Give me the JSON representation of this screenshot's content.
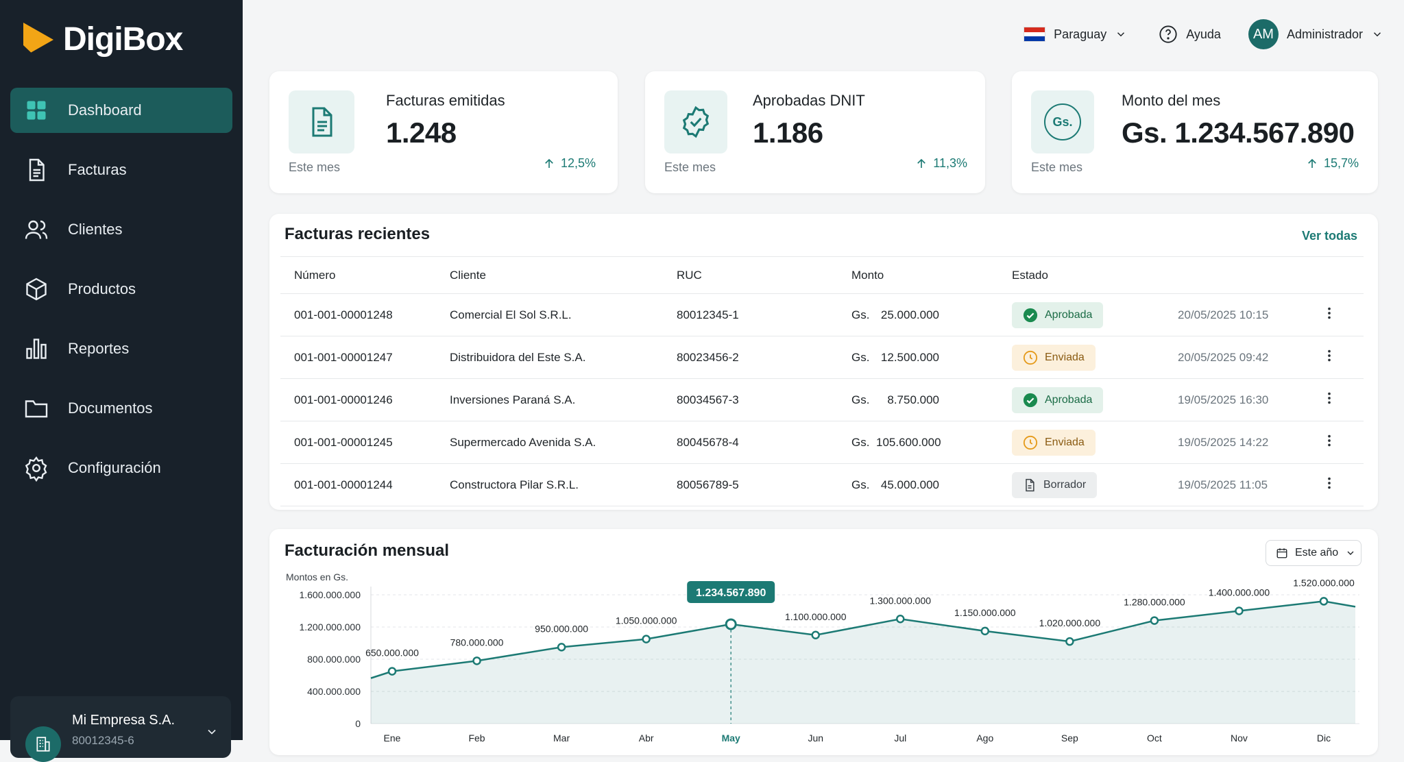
{
  "app": {
    "name": "DigiBox"
  },
  "sidebar": {
    "items": [
      {
        "label": "Dashboard",
        "icon": "grid-icon",
        "active": true
      },
      {
        "label": "Facturas",
        "icon": "document-icon",
        "active": false
      },
      {
        "label": "Clientes",
        "icon": "users-icon",
        "active": false
      },
      {
        "label": "Productos",
        "icon": "box-icon",
        "active": false
      },
      {
        "label": "Reportes",
        "icon": "bar-chart-icon",
        "active": false
      },
      {
        "label": "Documentos",
        "icon": "folder-icon",
        "active": false
      },
      {
        "label": "Configuración",
        "icon": "gear-icon",
        "active": false
      }
    ],
    "company": {
      "name": "Mi Empresa S.A.",
      "ruc": "80012345-6"
    }
  },
  "topbar": {
    "country": "Paraguay",
    "help": "Ayuda",
    "user_initials": "AM",
    "user_name": "Administrador"
  },
  "kpis": [
    {
      "label": "Facturas emitidas",
      "value": "1.248",
      "sub": "Este mes",
      "trend": "12,5%",
      "icon": "invoice-icon"
    },
    {
      "label": "Aprobadas DNIT",
      "value": "1.186",
      "sub": "Este mes",
      "trend": "11,3%",
      "icon": "verified-badge-icon"
    },
    {
      "label": "Monto del mes",
      "value": "Gs. 1.234.567.890",
      "sub": "Este mes",
      "trend": "15,7%",
      "icon": "currency-gs-icon",
      "icon_text": "Gs."
    }
  ],
  "invoices": {
    "title": "Facturas recientes",
    "view_all": "Ver todas",
    "columns": [
      "Número",
      "Cliente",
      "RUC",
      "Monto",
      "Estado"
    ],
    "currency": "Gs.",
    "rows": [
      {
        "numero": "001-001-00001248",
        "cliente": "Comercial El Sol S.R.L.",
        "ruc": "80012345-1",
        "monto": "25.000.000",
        "estado": "Aprobada",
        "fecha": "20/05/2025 10:15"
      },
      {
        "numero": "001-001-00001247",
        "cliente": "Distribuidora del Este S.A.",
        "ruc": "80023456-2",
        "monto": "12.500.000",
        "estado": "Enviada",
        "fecha": "20/05/2025 09:42"
      },
      {
        "numero": "001-001-00001246",
        "cliente": "Inversiones Paraná S.A.",
        "ruc": "80034567-3",
        "monto": "8.750.000",
        "estado": "Aprobada",
        "fecha": "19/05/2025 16:30"
      },
      {
        "numero": "001-001-00001245",
        "cliente": "Supermercado Avenida S.A.",
        "ruc": "80045678-4",
        "monto": "105.600.000",
        "estado": "Enviada",
        "fecha": "19/05/2025 14:22"
      },
      {
        "numero": "001-001-00001244",
        "cliente": "Constructora Pilar S.R.L.",
        "ruc": "80056789-5",
        "monto": "45.000.000",
        "estado": "Borrador",
        "fecha": "19/05/2025 11:05"
      }
    ]
  },
  "chart_section": {
    "title": "Facturación mensual",
    "filter": "Este año"
  },
  "chart_data": {
    "type": "area",
    "ylabel": "Montos en Gs.",
    "categories": [
      "Ene",
      "Feb",
      "Mar",
      "Abr",
      "May",
      "Jun",
      "Jul",
      "Ago",
      "Sep",
      "Oct",
      "Nov",
      "Dic"
    ],
    "values": [
      650000000,
      780000000,
      950000000,
      1050000000,
      1234567890,
      1100000000,
      1300000000,
      1150000000,
      1020000000,
      1280000000,
      1400000000,
      1520000000
    ],
    "value_labels": [
      "650.000.000",
      "780.000.000",
      "950.000.000",
      "1.050.000.000",
      "1.234.567.890",
      "1.100.000.000",
      "1.300.000.000",
      "1.150.000.000",
      "1.020.000.000",
      "1.280.000.000",
      "1.400.000.000",
      "1.520.000.000"
    ],
    "ylim": [
      0,
      1600000000
    ],
    "yticks": [
      0,
      400000000,
      800000000,
      1200000000,
      1600000000
    ],
    "ytick_labels": [
      "0",
      "400.000.000",
      "800.000.000",
      "1.200.000.000",
      "1.600.000.000"
    ],
    "highlight_index": 4,
    "color": "#1c7a74"
  }
}
